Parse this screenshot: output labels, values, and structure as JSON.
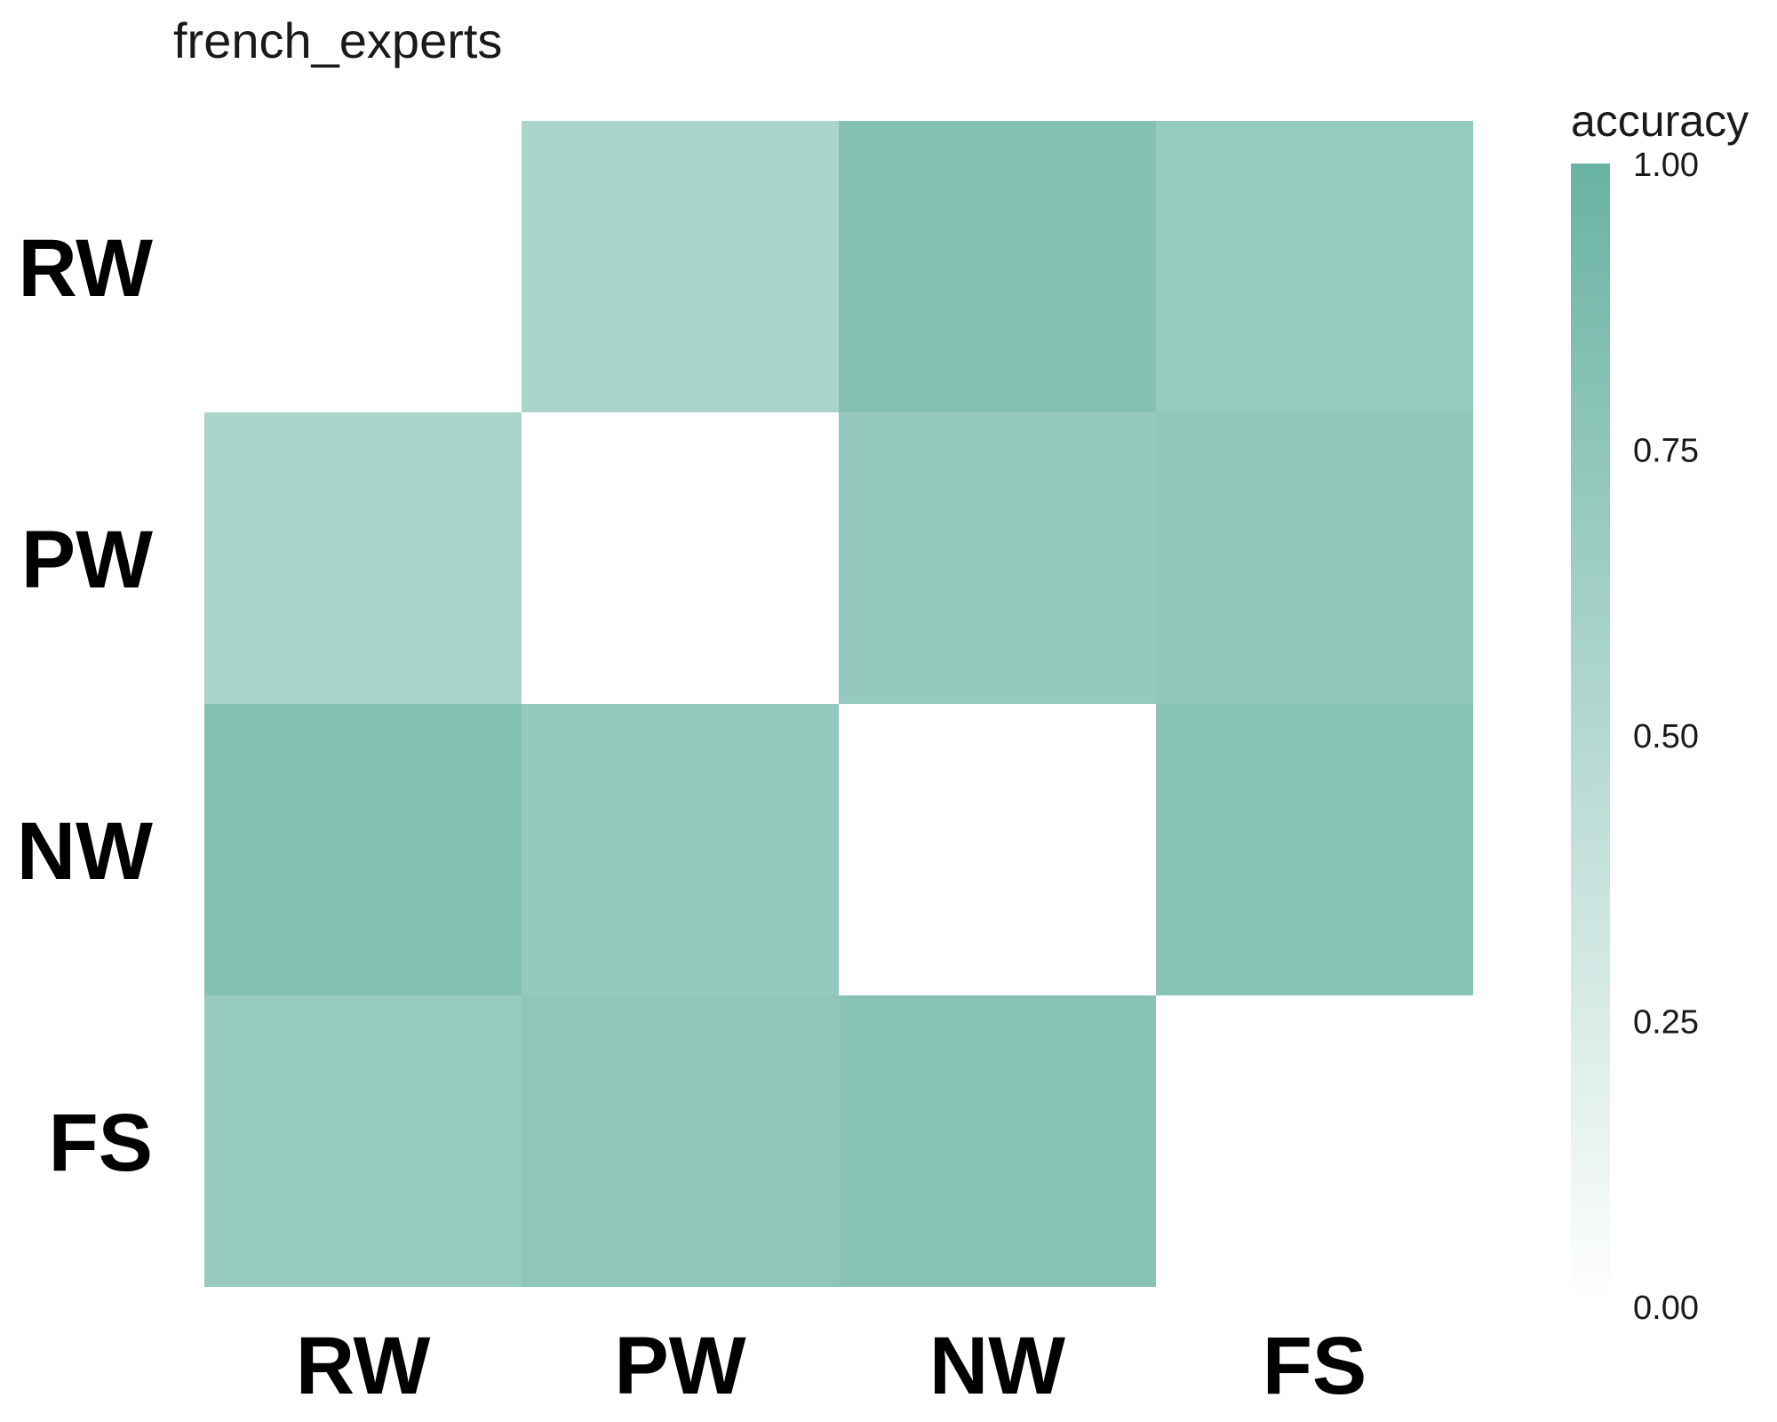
{
  "chart_data": {
    "type": "heatmap",
    "title": "french_experts",
    "rows": [
      "RW",
      "PW",
      "NW",
      "FS"
    ],
    "columns": [
      "RW",
      "PW",
      "NW",
      "FS"
    ],
    "values": [
      [
        null,
        0.56,
        0.82,
        0.69
      ],
      [
        0.56,
        null,
        0.71,
        0.75
      ],
      [
        0.82,
        0.71,
        null,
        0.79
      ],
      [
        0.69,
        0.75,
        0.79,
        null
      ]
    ],
    "legend": {
      "title": "accuracy",
      "ticks": [
        "1.00",
        "0.75",
        "0.50",
        "0.25",
        "0.00"
      ],
      "range": [
        0,
        1
      ],
      "placement": "right"
    },
    "colors": {
      "low": "#ffffff",
      "high": "#69b3a2"
    },
    "grid": false
  }
}
